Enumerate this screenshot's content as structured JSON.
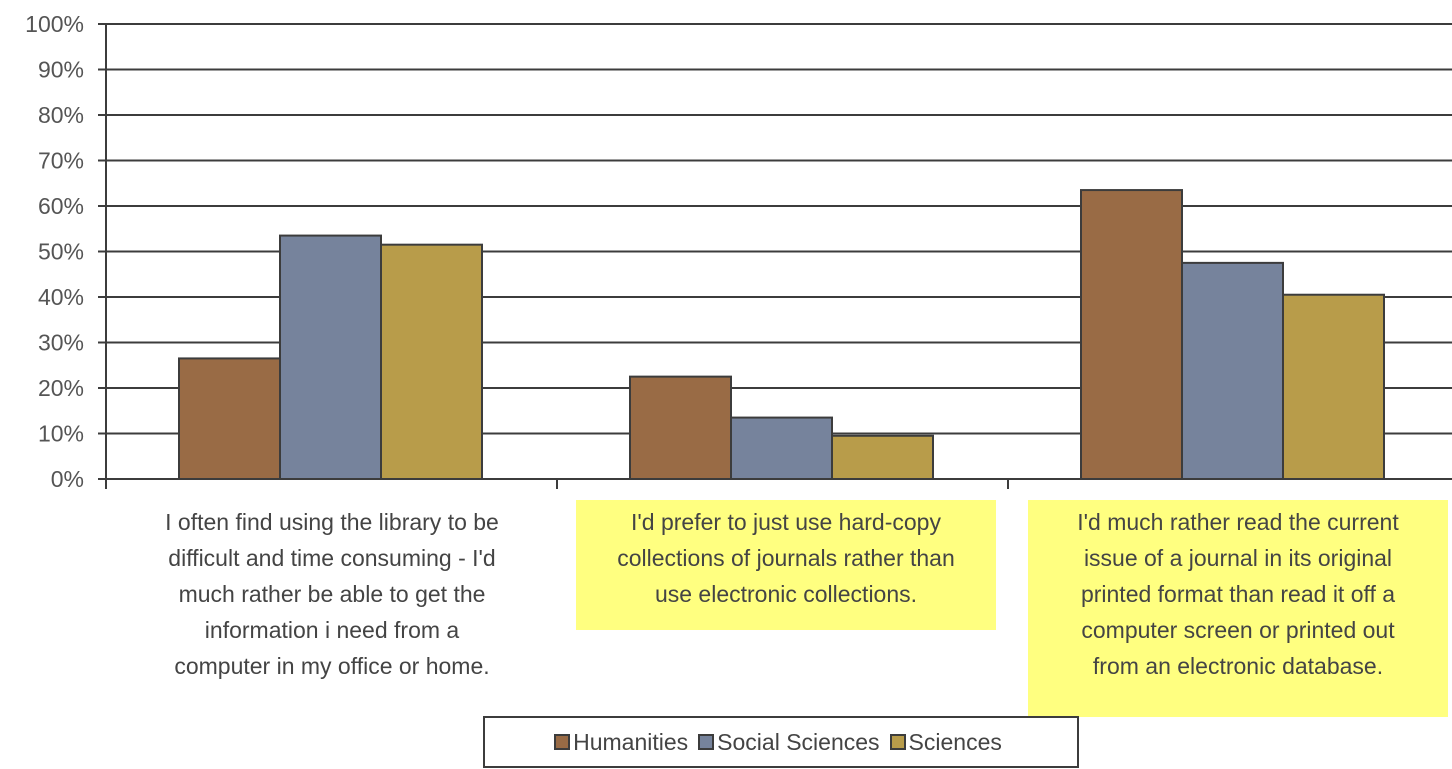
{
  "chart_data": {
    "type": "bar",
    "categories": [
      "I often find using the library to be difficult and time consuming - I'd much rather be able to get the information i need from a computer in my office or home.",
      "I'd prefer to just use hard-copy collections of journals rather than use electronic collections.",
      "I'd much rather read the current issue of a journal in its original printed format than read it off a computer screen or printed out from an electronic database."
    ],
    "category_lines": [
      [
        "I often find using the library to be",
        "difficult and time consuming - I'd",
        "much rather be able to get the",
        "information i need from a",
        "computer in my office or home."
      ],
      [
        "I'd prefer to just use hard-copy",
        "collections of journals rather than",
        "use electronic collections."
      ],
      [
        "I'd much rather read the current",
        "issue of a journal in its original",
        "printed format than read it off a",
        "computer screen or printed out",
        "from an electronic database."
      ]
    ],
    "series": [
      {
        "name": "Humanities",
        "color": "#996b45",
        "values": [
          26.5,
          22.5,
          63.5
        ]
      },
      {
        "name": "Social Sciences",
        "color": "#76839c",
        "values": [
          53.5,
          13.5,
          47.5
        ]
      },
      {
        "name": "Sciences",
        "color": "#b89c4a",
        "values": [
          51.5,
          9.5,
          40.5
        ]
      }
    ],
    "ylim": [
      0,
      100
    ],
    "y_ticks": [
      "0%",
      "10%",
      "20%",
      "30%",
      "40%",
      "50%",
      "60%",
      "70%",
      "80%",
      "90%",
      "100%"
    ],
    "grid": true,
    "legend_position": "bottom",
    "highlighted_categories": [
      1,
      2
    ],
    "highlight_color": "#ffff80",
    "title": "",
    "xlabel": "",
    "ylabel": ""
  }
}
